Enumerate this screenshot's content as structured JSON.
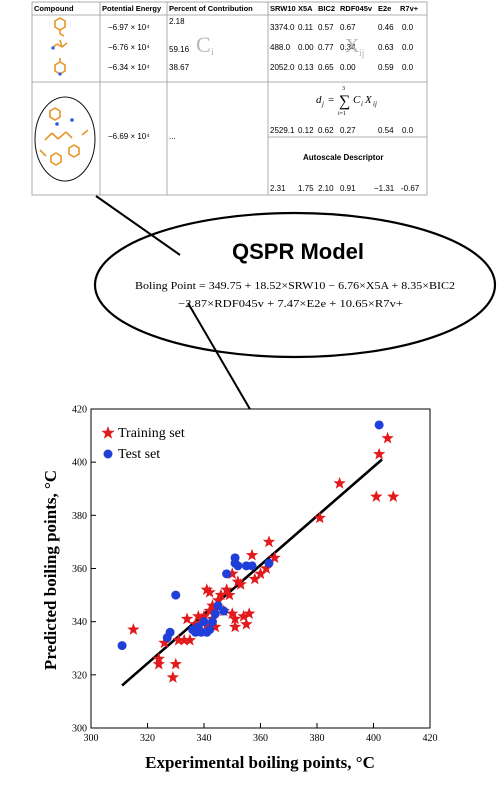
{
  "table": {
    "headers": [
      "Compound",
      "Potential Energy",
      "Percent of Contribution",
      "SRW10",
      "X5A",
      "BIC2",
      "RDF045v",
      "E2e",
      "R7v+"
    ],
    "rows": [
      {
        "energy": "−6.97 × 10⁴",
        "percent": "2.18",
        "values": [
          "3374.0",
          "0.11",
          "0.57",
          "0.67",
          "0.46",
          "0.0"
        ]
      },
      {
        "energy": "−6.76 × 10⁴",
        "percent": "59.16",
        "values": [
          "488.0",
          "0.00",
          "0.77",
          "0.34",
          "0.63",
          "0.0"
        ]
      },
      {
        "energy": "−6.34 × 10⁴",
        "percent": "38.67",
        "values": [
          "2052.0",
          "0.13",
          "0.65",
          "0.00",
          "0.59",
          "0.0"
        ]
      }
    ],
    "ci_watermark": "C",
    "ci_sub": "i",
    "xij_watermark": "X",
    "xij_sub": "ij",
    "complex": {
      "energy": "−6.69 × 10⁴",
      "percent": "...",
      "formula_lhs": "d",
      "formula_lhs_sub": "j",
      "formula_eq": "=",
      "formula_sum": "∑",
      "formula_upper": "3",
      "formula_lower": "i=1",
      "formula_term_c": "C",
      "formula_term_c_sub": "i",
      "formula_term_x": "X",
      "formula_term_x_sub": "ij",
      "values": [
        "2529.1",
        "0.12",
        "0.62",
        "0.27",
        "0.54",
        "0.0"
      ],
      "autoscale_label": "Autoscale Descriptor",
      "autoscale_values": [
        "2.31",
        "1.75",
        "2.10",
        "0.91",
        "−1.31",
        "-0.67"
      ]
    }
  },
  "model": {
    "title": "QSPR Model",
    "line1": "Boling Point = 349.75 + 18.52×SRW10 − 6.76×X5A + 8.35×BIC2",
    "line2": "−2.87×RDF045v + 7.47×E2e + 10.65×R7v+"
  },
  "colors": {
    "training": "#e31a1c",
    "test": "#1f3fd8",
    "fit": "#000000",
    "structure": "#e8952a"
  },
  "chart_data": {
    "type": "scatter",
    "title": "",
    "xlabel": "Experimental boiling points, °C",
    "ylabel": "Predicted boiling points, °C",
    "xlim": [
      300,
      420
    ],
    "ylim": [
      300,
      420
    ],
    "xticks": [
      300,
      320,
      340,
      360,
      380,
      400,
      420
    ],
    "yticks": [
      300,
      320,
      340,
      360,
      380,
      400,
      420
    ],
    "grid": false,
    "legend_position": "top-left",
    "series": [
      {
        "name": "Training set",
        "marker": "star",
        "points": [
          [
            315,
            337
          ],
          [
            324,
            324
          ],
          [
            324,
            326
          ],
          [
            326,
            332
          ],
          [
            329,
            319
          ],
          [
            330,
            324
          ],
          [
            331,
            333
          ],
          [
            333,
            333
          ],
          [
            334,
            341
          ],
          [
            335,
            333
          ],
          [
            337,
            339
          ],
          [
            338,
            342
          ],
          [
            339,
            341
          ],
          [
            340,
            342
          ],
          [
            341,
            339
          ],
          [
            342,
            344
          ],
          [
            343,
            346
          ],
          [
            344,
            345
          ],
          [
            345,
            348
          ],
          [
            346,
            350
          ],
          [
            347,
            344
          ],
          [
            348,
            352
          ],
          [
            349,
            350
          ],
          [
            350,
            343
          ],
          [
            351,
            341
          ],
          [
            352,
            355
          ],
          [
            350,
            358
          ],
          [
            353,
            354
          ],
          [
            354,
            342
          ],
          [
            355,
            339
          ],
          [
            356,
            343
          ],
          [
            357,
            365
          ],
          [
            358,
            356
          ],
          [
            360,
            358
          ],
          [
            362,
            360
          ],
          [
            363,
            370
          ],
          [
            365,
            364
          ],
          [
            341,
            352
          ],
          [
            342,
            351
          ],
          [
            343,
            341
          ],
          [
            344,
            338
          ],
          [
            351,
            338
          ],
          [
            381,
            379
          ],
          [
            388,
            392
          ],
          [
            401,
            387
          ],
          [
            402,
            403
          ],
          [
            405,
            409
          ],
          [
            407,
            387
          ]
        ]
      },
      {
        "name": "Test set",
        "marker": "circle",
        "points": [
          [
            311,
            331
          ],
          [
            327,
            334
          ],
          [
            328,
            336
          ],
          [
            330,
            350
          ],
          [
            336,
            337
          ],
          [
            337,
            336
          ],
          [
            338,
            338
          ],
          [
            339,
            336
          ],
          [
            340,
            340
          ],
          [
            341,
            336
          ],
          [
            342,
            337
          ],
          [
            343,
            340
          ],
          [
            344,
            343
          ],
          [
            345,
            346
          ],
          [
            347,
            344
          ],
          [
            348,
            358
          ],
          [
            351,
            362
          ],
          [
            351,
            364
          ],
          [
            352,
            361
          ],
          [
            355,
            361
          ],
          [
            357,
            361
          ],
          [
            363,
            362
          ],
          [
            402,
            414
          ]
        ]
      }
    ],
    "fit_line": {
      "from": [
        311,
        316
      ],
      "to": [
        403,
        401
      ]
    }
  }
}
